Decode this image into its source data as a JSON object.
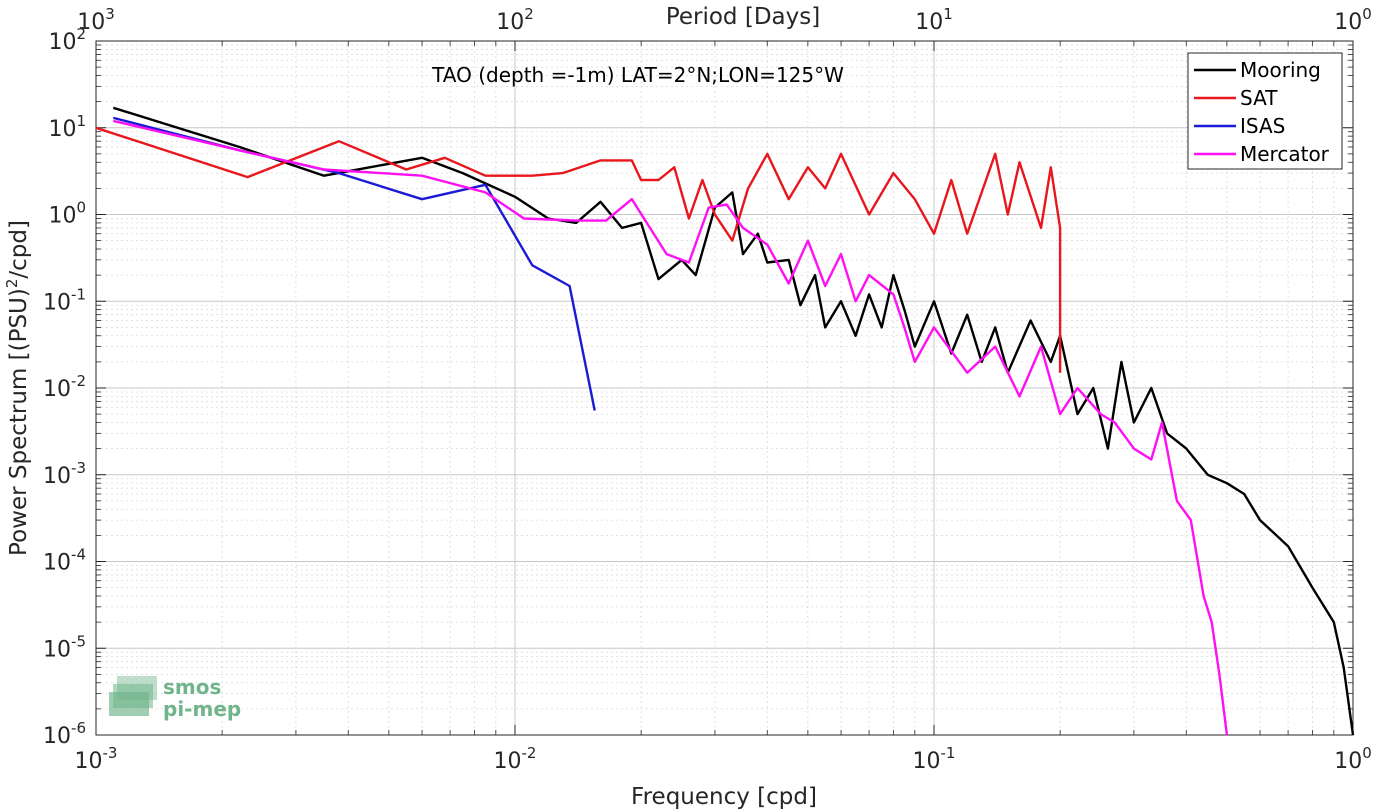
{
  "chart_data": {
    "type": "line",
    "title": "TAO (depth =-1m) LAT=2°N;LON=125°W",
    "xlabel": "Frequency [cpd]",
    "ylabel_main": "Power Spectrum [(PSU)",
    "ylabel_sup": "2",
    "ylabel_tail": "/cpd]",
    "top_xlabel": "Period [Days]",
    "xscale": "log",
    "yscale": "log",
    "xlim": [
      0.001,
      1
    ],
    "ylim": [
      1e-06,
      100
    ],
    "grid": true,
    "legend_position": "top-right",
    "x_ticks": [
      {
        "value": 0.001,
        "base": "10",
        "exp": "-3"
      },
      {
        "value": 0.01,
        "base": "10",
        "exp": "-2"
      },
      {
        "value": 0.1,
        "base": "10",
        "exp": "-1"
      },
      {
        "value": 1,
        "base": "10",
        "exp": "0"
      }
    ],
    "top_ticks": [
      {
        "value": 0.001,
        "base": "10",
        "exp": "3"
      },
      {
        "value": 0.01,
        "base": "10",
        "exp": "2"
      },
      {
        "value": 0.1,
        "base": "10",
        "exp": "1"
      },
      {
        "value": 1,
        "base": "10",
        "exp": "0"
      }
    ],
    "y_ticks": [
      {
        "value": 100,
        "base": "10",
        "exp": "2"
      },
      {
        "value": 10,
        "base": "10",
        "exp": "1"
      },
      {
        "value": 1,
        "base": "10",
        "exp": "0"
      },
      {
        "value": 0.1,
        "base": "10",
        "exp": "-1"
      },
      {
        "value": 0.01,
        "base": "10",
        "exp": "-2"
      },
      {
        "value": 0.001,
        "base": "10",
        "exp": "-3"
      },
      {
        "value": 0.0001,
        "base": "10",
        "exp": "-4"
      },
      {
        "value": 1e-05,
        "base": "10",
        "exp": "-5"
      },
      {
        "value": 1e-06,
        "base": "10",
        "exp": "-6"
      }
    ],
    "series": [
      {
        "name": "Mooring",
        "color": "#000000",
        "values": [
          [
            0.0011,
            17
          ],
          [
            0.0022,
            6
          ],
          [
            0.0035,
            2.8
          ],
          [
            0.0045,
            3.5
          ],
          [
            0.006,
            4.5
          ],
          [
            0.0075,
            3
          ],
          [
            0.01,
            1.6
          ],
          [
            0.012,
            0.9
          ],
          [
            0.014,
            0.8
          ],
          [
            0.016,
            1.4
          ],
          [
            0.018,
            0.7
          ],
          [
            0.02,
            0.8
          ],
          [
            0.022,
            0.18
          ],
          [
            0.025,
            0.3
          ],
          [
            0.027,
            0.2
          ],
          [
            0.03,
            1.2
          ],
          [
            0.033,
            1.8
          ],
          [
            0.035,
            0.35
          ],
          [
            0.038,
            0.6
          ],
          [
            0.04,
            0.28
          ],
          [
            0.045,
            0.3
          ],
          [
            0.048,
            0.09
          ],
          [
            0.052,
            0.2
          ],
          [
            0.055,
            0.05
          ],
          [
            0.06,
            0.1
          ],
          [
            0.065,
            0.04
          ],
          [
            0.07,
            0.12
          ],
          [
            0.075,
            0.05
          ],
          [
            0.08,
            0.2
          ],
          [
            0.085,
            0.08
          ],
          [
            0.09,
            0.03
          ],
          [
            0.1,
            0.1
          ],
          [
            0.11,
            0.025
          ],
          [
            0.12,
            0.07
          ],
          [
            0.13,
            0.02
          ],
          [
            0.14,
            0.05
          ],
          [
            0.15,
            0.015
          ],
          [
            0.17,
            0.06
          ],
          [
            0.19,
            0.02
          ],
          [
            0.2,
            0.04
          ],
          [
            0.22,
            0.005
          ],
          [
            0.24,
            0.01
          ],
          [
            0.26,
            0.002
          ],
          [
            0.28,
            0.02
          ],
          [
            0.3,
            0.004
          ],
          [
            0.33,
            0.01
          ],
          [
            0.36,
            0.003
          ],
          [
            0.4,
            0.002
          ],
          [
            0.45,
            0.001
          ],
          [
            0.5,
            0.0008
          ],
          [
            0.55,
            0.0006
          ],
          [
            0.6,
            0.0003
          ],
          [
            0.7,
            0.00015
          ],
          [
            0.8,
            5e-05
          ],
          [
            0.9,
            2e-05
          ],
          [
            0.95,
            6e-06
          ],
          [
            1.0,
            1e-06
          ]
        ]
      },
      {
        "name": "SAT",
        "color": "#e8161d",
        "values": [
          [
            0.001,
            10
          ],
          [
            0.0023,
            2.7
          ],
          [
            0.0038,
            7
          ],
          [
            0.0055,
            3.3
          ],
          [
            0.0068,
            4.5
          ],
          [
            0.0085,
            2.8
          ],
          [
            0.011,
            2.8
          ],
          [
            0.013,
            3
          ],
          [
            0.016,
            4.2
          ],
          [
            0.019,
            4.2
          ],
          [
            0.02,
            2.5
          ],
          [
            0.022,
            2.5
          ],
          [
            0.024,
            3.5
          ],
          [
            0.026,
            0.9
          ],
          [
            0.028,
            2.5
          ],
          [
            0.03,
            1
          ],
          [
            0.033,
            0.5
          ],
          [
            0.036,
            2
          ],
          [
            0.04,
            5
          ],
          [
            0.045,
            1.5
          ],
          [
            0.05,
            3.5
          ],
          [
            0.055,
            2
          ],
          [
            0.06,
            5
          ],
          [
            0.07,
            1
          ],
          [
            0.08,
            3
          ],
          [
            0.09,
            1.5
          ],
          [
            0.1,
            0.6
          ],
          [
            0.11,
            2.5
          ],
          [
            0.12,
            0.6
          ],
          [
            0.14,
            5
          ],
          [
            0.15,
            1
          ],
          [
            0.16,
            4
          ],
          [
            0.18,
            0.7
          ],
          [
            0.19,
            3.5
          ],
          [
            0.2,
            0.7
          ],
          [
            0.2,
            0.015
          ]
        ]
      },
      {
        "name": "ISAS",
        "color": "#1b1bd6",
        "values": [
          [
            0.0011,
            13
          ],
          [
            0.0022,
            5.5
          ],
          [
            0.0038,
            3
          ],
          [
            0.006,
            1.5
          ],
          [
            0.0085,
            2.2
          ],
          [
            0.011,
            0.26
          ],
          [
            0.0135,
            0.15
          ],
          [
            0.0155,
            0.0055
          ]
        ]
      },
      {
        "name": "Mercator",
        "color": "#ff10f2",
        "values": [
          [
            0.0011,
            12
          ],
          [
            0.0022,
            5.5
          ],
          [
            0.0035,
            3.3
          ],
          [
            0.006,
            2.8
          ],
          [
            0.0085,
            1.8
          ],
          [
            0.0105,
            0.9
          ],
          [
            0.014,
            0.85
          ],
          [
            0.0165,
            0.85
          ],
          [
            0.019,
            1.5
          ],
          [
            0.023,
            0.35
          ],
          [
            0.026,
            0.28
          ],
          [
            0.029,
            1.2
          ],
          [
            0.032,
            1.3
          ],
          [
            0.035,
            0.7
          ],
          [
            0.04,
            0.45
          ],
          [
            0.045,
            0.16
          ],
          [
            0.05,
            0.5
          ],
          [
            0.055,
            0.15
          ],
          [
            0.06,
            0.35
          ],
          [
            0.065,
            0.1
          ],
          [
            0.07,
            0.2
          ],
          [
            0.08,
            0.12
          ],
          [
            0.085,
            0.05
          ],
          [
            0.09,
            0.02
          ],
          [
            0.1,
            0.05
          ],
          [
            0.12,
            0.015
          ],
          [
            0.14,
            0.03
          ],
          [
            0.16,
            0.008
          ],
          [
            0.18,
            0.03
          ],
          [
            0.2,
            0.005
          ],
          [
            0.22,
            0.01
          ],
          [
            0.25,
            0.005
          ],
          [
            0.27,
            0.004
          ],
          [
            0.3,
            0.002
          ],
          [
            0.33,
            0.0015
          ],
          [
            0.35,
            0.004
          ],
          [
            0.38,
            0.0005
          ],
          [
            0.41,
            0.0003
          ],
          [
            0.44,
            4e-05
          ],
          [
            0.46,
            2e-05
          ],
          [
            0.48,
            5e-06
          ],
          [
            0.5,
            1e-06
          ]
        ]
      }
    ]
  },
  "legend": {
    "mooring": "Mooring",
    "sat": "SAT",
    "isas": "ISAS",
    "mercator": "Mercator"
  },
  "logo": {
    "line1": "smos",
    "line2": "pi-mep"
  }
}
